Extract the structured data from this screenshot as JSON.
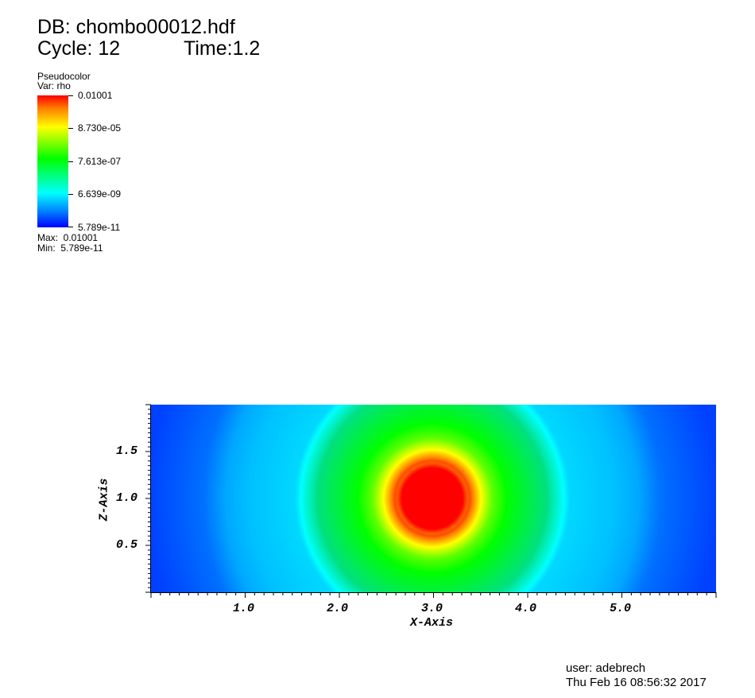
{
  "header": {
    "db_label": "DB: chombo00012.hdf",
    "cycle_label": "Cycle: 12",
    "time_label": "Time:1.2"
  },
  "legend": {
    "plot_type": "Pseudocolor",
    "var_label": "Var: rho",
    "ticks": [
      "0.01001",
      "8.730e-05",
      "7.613e-07",
      "6.639e-09",
      "5.789e-11"
    ],
    "max_label": "Max:  0.01001",
    "min_label": "Min:  5.789e-11",
    "colormap": [
      "#ff0000",
      "#ff8000",
      "#ffff00",
      "#00ff00",
      "#00ffff",
      "#0080ff",
      "#0000ff"
    ]
  },
  "axes": {
    "x_title": "X-Axis",
    "z_title": "Z-Axis",
    "x_ticks": [
      "1.0",
      "2.0",
      "3.0",
      "4.0",
      "5.0"
    ],
    "z_ticks": [
      "1.5",
      "1.0",
      "0.5"
    ]
  },
  "footer": {
    "user": "user: adebrech",
    "timestamp": "Thu Feb 16 08:56:32 2017"
  },
  "chart_data": {
    "type": "heatmap",
    "variable": "rho",
    "xlim": [
      0.0,
      6.0
    ],
    "zlim": [
      0.0,
      2.0
    ],
    "value_range": [
      5.789e-11,
      0.01001
    ],
    "center": [
      3.0,
      1.0
    ],
    "core_radius": 0.4,
    "x_ticks": [
      1.0,
      2.0,
      3.0,
      4.0,
      5.0
    ],
    "z_ticks": [
      0.5,
      1.0,
      1.5
    ]
  }
}
